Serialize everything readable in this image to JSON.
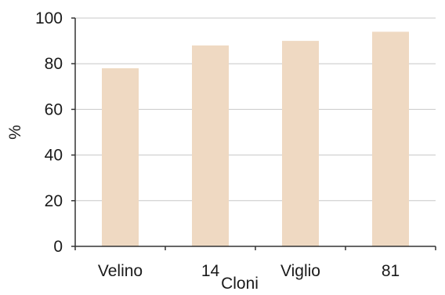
{
  "chart_data": {
    "type": "bar",
    "categories": [
      "Velino",
      "14",
      "Viglio",
      "81"
    ],
    "values": [
      78,
      88,
      90,
      94
    ],
    "xlabel": "Cloni",
    "ylabel": "%",
    "ylim": [
      0,
      100
    ],
    "yticks": [
      "0",
      "20",
      "40",
      "60",
      "80",
      "100"
    ],
    "grid": true,
    "bar_color": "#efd9c2"
  }
}
